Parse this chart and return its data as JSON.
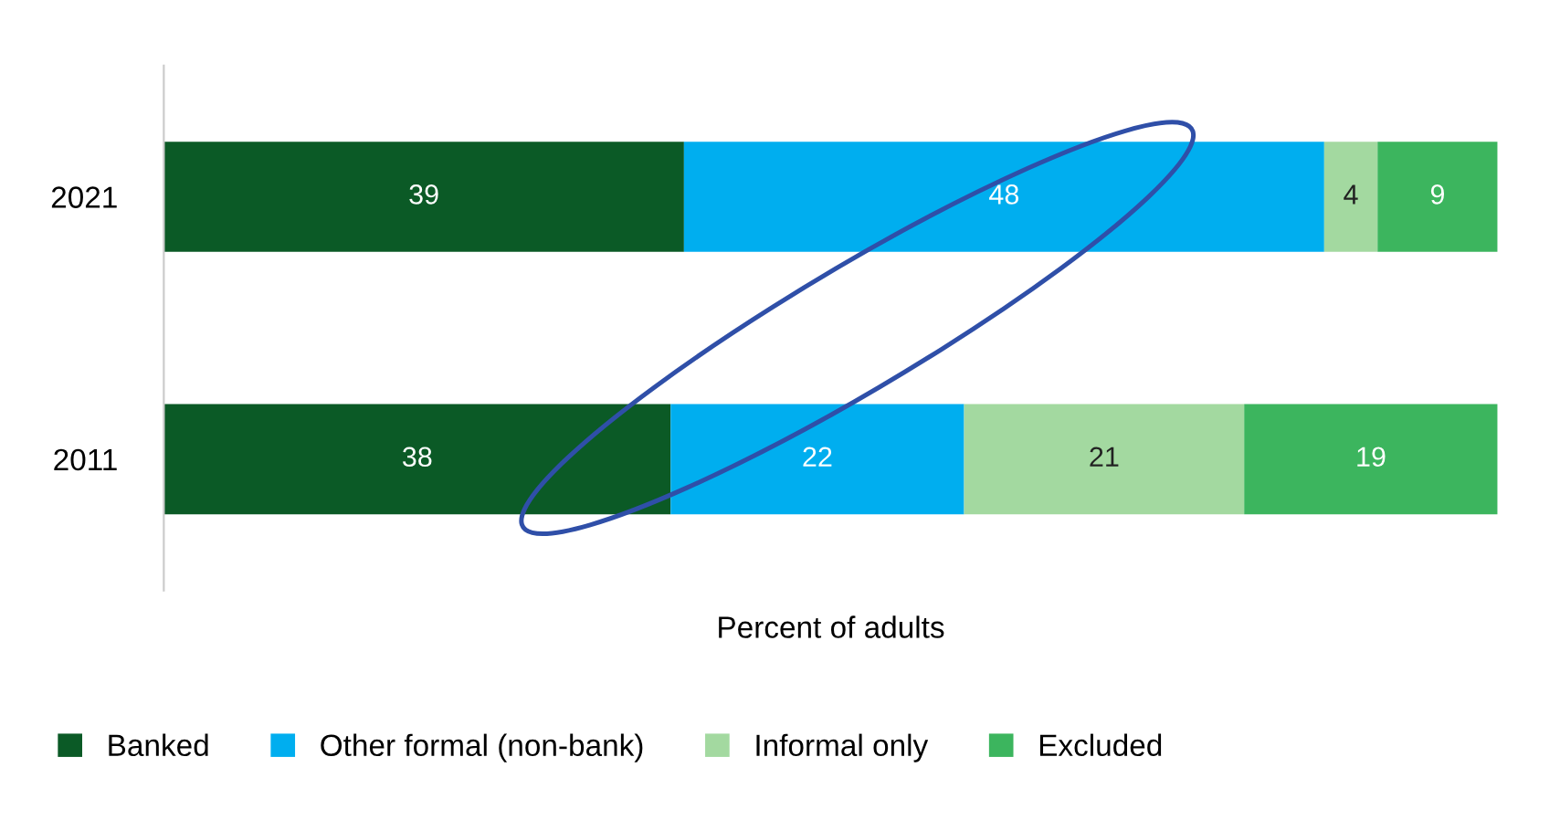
{
  "chart_data": {
    "type": "bar",
    "orientation": "horizontal",
    "stacked": true,
    "data_labels": true,
    "xlabel": "Percent of adults",
    "categories": [
      "2021",
      "2011"
    ],
    "series": [
      {
        "name": "Banked",
        "color": "#0b5a26",
        "values": [
          39,
          38
        ]
      },
      {
        "name": "Other formal (non-bank)",
        "color": "#00aeef",
        "values": [
          48,
          22
        ]
      },
      {
        "name": "Informal only",
        "color": "#a3d9a0",
        "values": [
          4,
          21
        ]
      },
      {
        "name": "Excluded",
        "color": "#3cb55e",
        "values": [
          9,
          19
        ]
      }
    ],
    "legend": "bottom left",
    "grid": false,
    "tick_labels": "y"
  }
}
